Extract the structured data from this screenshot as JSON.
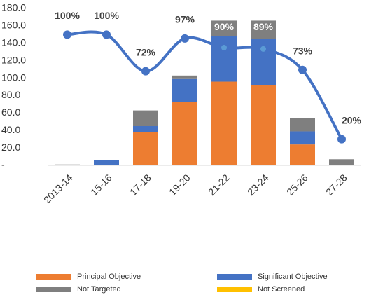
{
  "chart_data": {
    "type": "bar",
    "categories": [
      "2013-14",
      "15-16",
      "17-18",
      "19-20",
      "21-22",
      "23-24",
      "25-26",
      "27-28"
    ],
    "series": [
      {
        "name": "Principal Objective",
        "color": "#ed7d31",
        "values": [
          0,
          0,
          38,
          73,
          96,
          92,
          24,
          0
        ]
      },
      {
        "name": "Significant Objective",
        "color": "#4472c4",
        "values": [
          0,
          6,
          7,
          26,
          52,
          53,
          15,
          0
        ]
      },
      {
        "name": "Not Targeted",
        "color": "#7f7f7f",
        "values": [
          1,
          0,
          18,
          4,
          18,
          21,
          15,
          7
        ]
      },
      {
        "name": "Not Screened",
        "color": "#ffc000",
        "values": [
          0,
          0,
          0,
          0,
          0,
          0,
          0,
          0
        ]
      },
      {
        "type": "line",
        "axis": "y2",
        "color": "#4472c4",
        "values": [
          100,
          100,
          72,
          97,
          90,
          89,
          73,
          20
        ],
        "value_labels": [
          "100%",
          "100%",
          "72%",
          "97%",
          "90%",
          "89%",
          "73%",
          "20%"
        ]
      }
    ],
    "ylim": [
      0,
      180
    ],
    "yticks": [
      {
        "value": 0,
        "label": "-"
      },
      {
        "value": 20,
        "label": "20.0"
      },
      {
        "value": 40,
        "label": "40.0"
      },
      {
        "value": 60,
        "label": "60.0"
      },
      {
        "value": 80,
        "label": "80.0"
      },
      {
        "value": 100,
        "label": "100.0"
      },
      {
        "value": 120,
        "label": "120.0"
      },
      {
        "value": 140,
        "label": "140.0"
      },
      {
        "value": 160,
        "label": "160.0"
      },
      {
        "value": 180,
        "label": "180.0"
      }
    ],
    "y2lim": [
      0,
      120
    ]
  }
}
